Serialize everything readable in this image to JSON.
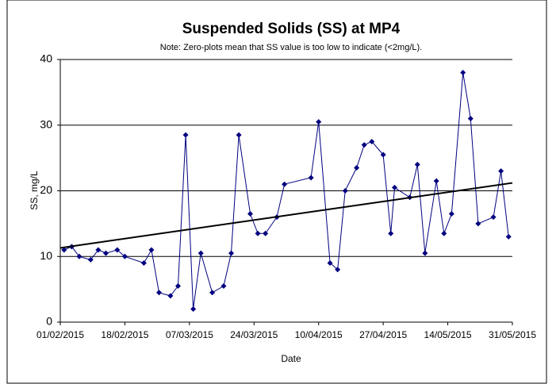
{
  "chart_data": {
    "type": "line",
    "title": "Suspended Solids (SS) at MP4",
    "subtitle": "Note: Zero-plots mean that SS value is too low to indicate (<2mg/L).",
    "x_label": "Date",
    "y_label": "SS, mg/L",
    "x": [
      "02/02/2015",
      "04/02/2015",
      "06/02/2015",
      "09/02/2015",
      "11/02/2015",
      "13/02/2015",
      "16/02/2015",
      "18/02/2015",
      "23/02/2015",
      "25/02/2015",
      "27/02/2015",
      "02/03/2015",
      "04/03/2015",
      "06/03/2015",
      "08/03/2015",
      "10/03/2015",
      "13/03/2015",
      "16/03/2015",
      "18/03/2015",
      "20/03/2015",
      "23/03/2015",
      "25/03/2015",
      "27/03/2015",
      "30/03/2015",
      "01/04/2015",
      "08/04/2015",
      "10/04/2015",
      "13/04/2015",
      "15/04/2015",
      "17/04/2015",
      "20/04/2015",
      "22/04/2015",
      "24/04/2015",
      "27/04/2015",
      "29/04/2015",
      "30/04/2015",
      "04/05/2015",
      "06/05/2015",
      "08/05/2015",
      "11/05/2015",
      "13/05/2015",
      "15/05/2015",
      "18/05/2015",
      "20/05/2015",
      "22/05/2015",
      "26/05/2015",
      "28/05/2015",
      "30/05/2015"
    ],
    "values": [
      11,
      11.5,
      10,
      9.5,
      11,
      10.5,
      11,
      10,
      9,
      11,
      4.5,
      4,
      5.5,
      28.5,
      2,
      10.5,
      4.5,
      5.5,
      10.5,
      28.5,
      16.5,
      13.5,
      13.5,
      16,
      21,
      22,
      30.5,
      9,
      8,
      20,
      23.5,
      27,
      27.5,
      25.5,
      13.5,
      20.5,
      19,
      24,
      10.5,
      21.5,
      13.5,
      16.5,
      38,
      31,
      15,
      16,
      23,
      13
    ],
    "color": "#000080",
    "trendline": {
      "x": [
        "01/02/2015",
        "31/05/2015"
      ],
      "values": [
        11.3,
        21.2
      ],
      "color": "#000000"
    },
    "xlim": [
      "01/02/2015",
      "31/05/2015"
    ],
    "xticks": [
      "01/02/2015",
      "18/02/2015",
      "07/03/2015",
      "24/03/2015",
      "10/04/2015",
      "27/04/2015",
      "14/05/2015",
      "31/05/2015"
    ],
    "ylim": [
      0,
      40
    ],
    "yticks": [
      0,
      10,
      20,
      30,
      40
    ],
    "grid": true
  }
}
